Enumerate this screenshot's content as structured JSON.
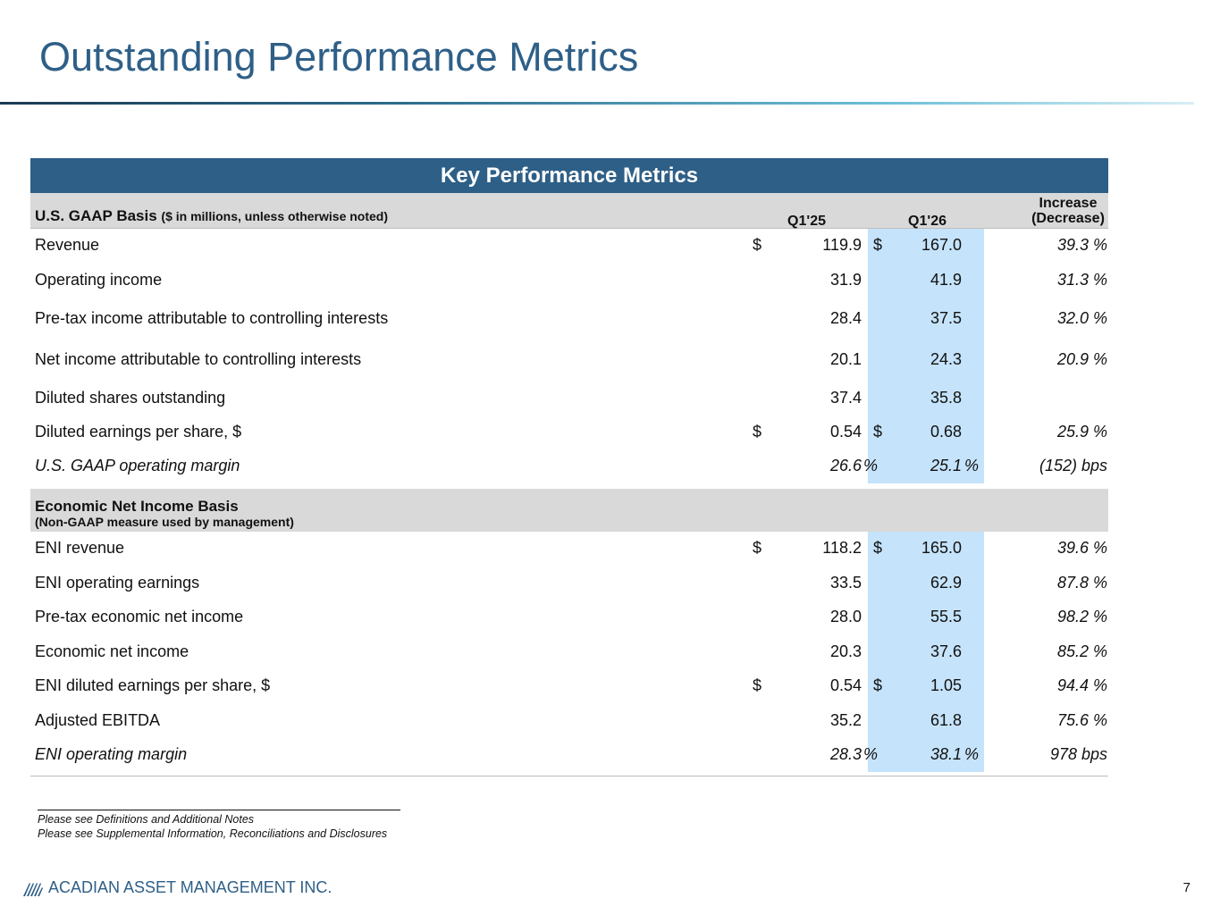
{
  "title": "Outstanding Performance Metrics",
  "table": {
    "banner": "Key Performance Metrics",
    "gaap_label": "U.S. GAAP Basis",
    "gaap_sub": "($ in millions, unless otherwise noted)",
    "col_q125": "Q1'25",
    "col_q126": "Q1'26",
    "col_change_1": "Increase",
    "col_change_2": "(Decrease)",
    "gaap_rows": [
      {
        "label": "Revenue",
        "d1": "$",
        "v1": "119.9",
        "d2": "$",
        "v2": "167.0",
        "chg": "39.3 %"
      },
      {
        "label": "Operating income",
        "v1": "31.9",
        "v2": "41.9",
        "chg": "31.3 %"
      },
      {
        "label": "Pre-tax income attributable to controlling interests",
        "v1": "28.4",
        "v2": "37.5",
        "chg": "32.0 %"
      },
      {
        "label": "Net income attributable to controlling interests",
        "v1": "20.1",
        "v2": "24.3",
        "chg": "20.9 %"
      },
      {
        "label": "Diluted shares outstanding",
        "v1": "37.4",
        "v2": "35.8",
        "chg": ""
      },
      {
        "label": "Diluted earnings per share, $",
        "d1": "$",
        "v1": "0.54",
        "d2": "$",
        "v2": "0.68",
        "chg": "25.9 %"
      },
      {
        "label": "U.S. GAAP operating margin",
        "v1": "26.6",
        "p1": "%",
        "v2": "25.1",
        "p2": "%",
        "chg": "(152) bps"
      }
    ],
    "eni_label": "Economic Net Income Basis",
    "eni_sub": "(Non-GAAP measure used by management)",
    "eni_rows": [
      {
        "label": "ENI revenue",
        "d1": "$",
        "v1": "118.2",
        "d2": "$",
        "v2": "165.0",
        "chg": "39.6 %"
      },
      {
        "label": "ENI operating earnings",
        "v1": "33.5",
        "v2": "62.9",
        "chg": "87.8 %"
      },
      {
        "label": "Pre-tax economic net income",
        "v1": "28.0",
        "v2": "55.5",
        "chg": "98.2 %"
      },
      {
        "label": "Economic net income",
        "v1": "20.3",
        "v2": "37.6",
        "chg": "85.2 %"
      },
      {
        "label": "ENI diluted earnings per share, $",
        "d1": "$",
        "v1": "0.54",
        "d2": "$",
        "v2": "1.05",
        "chg": "94.4 %"
      },
      {
        "label": "Adjusted EBITDA",
        "v1": "35.2",
        "v2": "61.8",
        "chg": "75.6 %"
      },
      {
        "label": "ENI operating margin",
        "v1": "28.3",
        "p1": "%",
        "v2": "38.1",
        "p2": "%",
        "chg": "978 bps"
      }
    ]
  },
  "footnotes": {
    "line1": "Please see Definitions and Additional Notes",
    "line2": "Please see Supplemental Information, Reconciliations and Disclosures"
  },
  "logo_text": "ACADIAN ASSET MANAGEMENT INC.",
  "page_number": "7",
  "colors": {
    "title": "#2e5f87",
    "banner": "#2e5f87",
    "highlight": "#c5e3fa",
    "section_bg": "#d9d9d9"
  }
}
